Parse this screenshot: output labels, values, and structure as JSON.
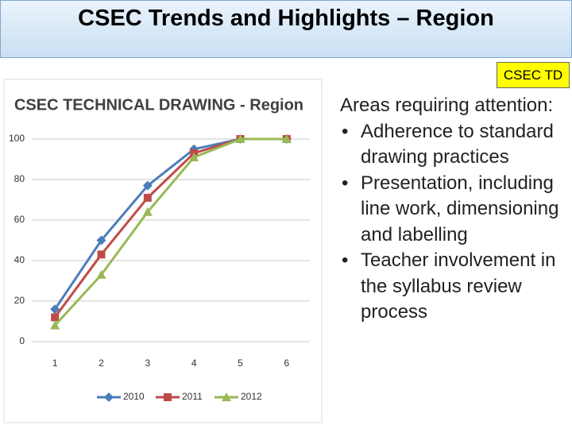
{
  "title": "CSEC Trends and Highlights – Region",
  "badge": "CSEC TD",
  "chart_data": {
    "type": "line",
    "title": "CSEC TECHNICAL DRAWING - Region",
    "x": [
      1,
      2,
      3,
      4,
      5,
      6
    ],
    "xlim": [
      0.5,
      6.5
    ],
    "xticks": [
      1,
      2,
      3,
      4,
      5,
      6
    ],
    "ylim": [
      0,
      100
    ],
    "yticks": [
      0,
      20,
      40,
      60,
      80,
      100
    ],
    "grid": true,
    "series": [
      {
        "name": "2010",
        "color": "#4a7ebb",
        "marker": "diamond",
        "values": [
          16,
          50,
          77,
          95,
          100,
          100
        ]
      },
      {
        "name": "2011",
        "color": "#be4b48",
        "marker": "square",
        "values": [
          12,
          43,
          71,
          93,
          100,
          100
        ]
      },
      {
        "name": "2012",
        "color": "#98b954",
        "marker": "triangle",
        "values": [
          8,
          33,
          64,
          91,
          100,
          100
        ]
      }
    ]
  },
  "text": {
    "heading": "Areas requiring attention:",
    "bullets": [
      "Adherence to standard drawing practices",
      "Presentation, including line work, dimensioning and labelling",
      "Teacher involvement in the syllabus review process"
    ]
  }
}
